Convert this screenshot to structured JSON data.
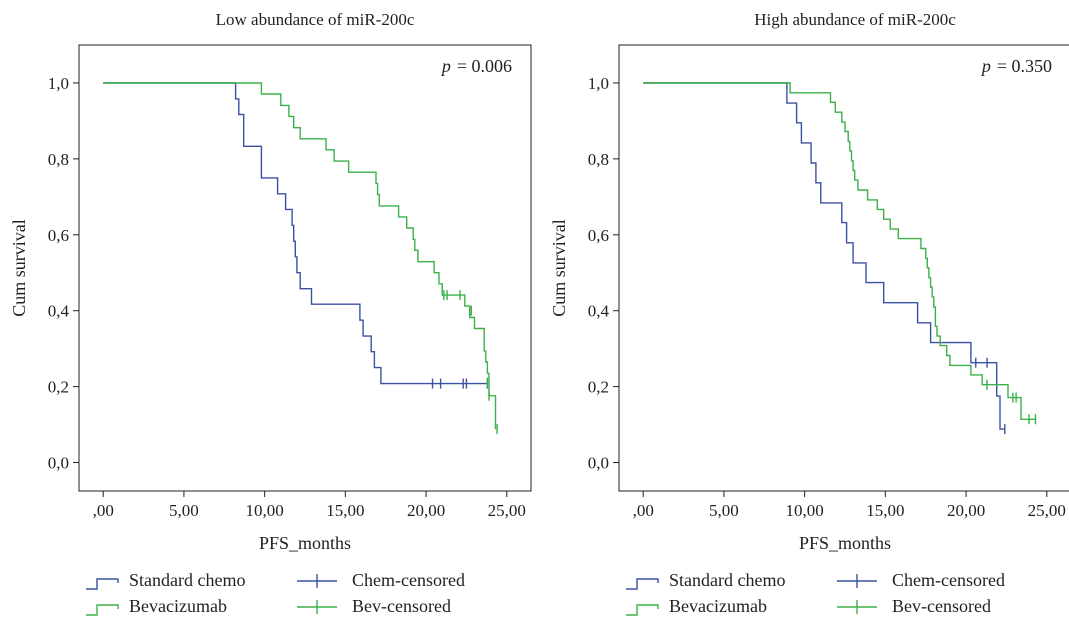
{
  "chart_data": [
    {
      "type": "line",
      "title": "Low abundance of miR-200c",
      "p_label": "p",
      "p_value": "= 0.006",
      "xlabel": "PFS_months",
      "ylabel": "Cum survival",
      "xlim": [
        -1.5,
        26.5
      ],
      "ylim": [
        -0.075,
        1.1
      ],
      "xticks": [
        0,
        5,
        10,
        15,
        20,
        25
      ],
      "xtick_labels": [
        ",00",
        "5,00",
        "10,00",
        "15,00",
        "20,00",
        "25,00"
      ],
      "yticks": [
        0,
        0.2,
        0.4,
        0.6,
        0.8,
        1.0
      ],
      "ytick_labels": [
        "0,0",
        "0,2",
        "0,4",
        "0,6",
        "0,8",
        "1,0"
      ],
      "grid": false,
      "series": [
        {
          "name": "Standard chemo",
          "color": "#3a52a3",
          "steps": [
            [
              0,
              1.0
            ],
            [
              8.2,
              1.0
            ],
            [
              8.2,
              0.958
            ],
            [
              8.4,
              0.917
            ],
            [
              8.7,
              0.833
            ],
            [
              9.8,
              0.75
            ],
            [
              10.8,
              0.708
            ],
            [
              11.3,
              0.667
            ],
            [
              11.7,
              0.625
            ],
            [
              11.8,
              0.583
            ],
            [
              11.9,
              0.542
            ],
            [
              12.0,
              0.5
            ],
            [
              12.2,
              0.458
            ],
            [
              12.9,
              0.417
            ],
            [
              15.9,
              0.375
            ],
            [
              16.1,
              0.333
            ],
            [
              16.6,
              0.292
            ],
            [
              16.8,
              0.25
            ],
            [
              17.2,
              0.208
            ],
            [
              23.8,
              0.208
            ]
          ],
          "censored": [
            [
              20.4,
              0.208
            ],
            [
              20.9,
              0.208
            ],
            [
              22.3,
              0.208
            ],
            [
              22.5,
              0.208
            ],
            [
              23.8,
              0.208
            ]
          ]
        },
        {
          "name": "Bevacizumab",
          "color": "#3db049",
          "steps": [
            [
              0,
              1.0
            ],
            [
              9.8,
              1.0
            ],
            [
              9.8,
              0.971
            ],
            [
              11.0,
              0.941
            ],
            [
              11.5,
              0.912
            ],
            [
              11.8,
              0.882
            ],
            [
              12.2,
              0.853
            ],
            [
              13.8,
              0.824
            ],
            [
              14.3,
              0.794
            ],
            [
              15.2,
              0.765
            ],
            [
              16.9,
              0.735
            ],
            [
              17.0,
              0.706
            ],
            [
              17.1,
              0.676
            ],
            [
              18.3,
              0.647
            ],
            [
              18.8,
              0.618
            ],
            [
              19.2,
              0.588
            ],
            [
              19.3,
              0.559
            ],
            [
              19.5,
              0.529
            ],
            [
              20.5,
              0.5
            ],
            [
              20.8,
              0.471
            ],
            [
              21.0,
              0.441
            ],
            [
              22.4,
              0.412
            ],
            [
              22.7,
              0.382
            ],
            [
              23.0,
              0.353
            ],
            [
              23.6,
              0.294
            ],
            [
              23.7,
              0.265
            ],
            [
              23.8,
              0.235
            ],
            [
              23.9,
              0.176
            ],
            [
              24.3,
              0.088
            ]
          ],
          "censored": [
            [
              21.1,
              0.441
            ],
            [
              21.3,
              0.441
            ],
            [
              22.1,
              0.441
            ],
            [
              22.8,
              0.4
            ],
            [
              23.8,
              0.211
            ],
            [
              23.9,
              0.176
            ],
            [
              24.4,
              0.088
            ]
          ]
        }
      ]
    },
    {
      "type": "line",
      "title": "High abundance of miR-200c",
      "p_label": "p",
      "p_value": "= 0.350",
      "xlabel": "PFS_months",
      "ylabel": "Cum survival",
      "xlim": [
        -1.5,
        26.5
      ],
      "ylim": [
        -0.075,
        1.1
      ],
      "xticks": [
        0,
        5,
        10,
        15,
        20,
        25
      ],
      "xtick_labels": [
        ",00",
        "5,00",
        "10,00",
        "15,00",
        "20,00",
        "25,00"
      ],
      "yticks": [
        0,
        0.2,
        0.4,
        0.6,
        0.8,
        1.0
      ],
      "ytick_labels": [
        "0,0",
        "0,2",
        "0,4",
        "0,6",
        "0,8",
        "1,0"
      ],
      "grid": false,
      "series": [
        {
          "name": "Standard chemo",
          "color": "#3a52a3",
          "steps": [
            [
              0,
              1.0
            ],
            [
              8.9,
              1.0
            ],
            [
              8.9,
              0.947
            ],
            [
              9.5,
              0.895
            ],
            [
              9.8,
              0.842
            ],
            [
              10.4,
              0.789
            ],
            [
              10.7,
              0.737
            ],
            [
              11.0,
              0.684
            ],
            [
              12.3,
              0.632
            ],
            [
              12.6,
              0.579
            ],
            [
              13.0,
              0.526
            ],
            [
              13.8,
              0.474
            ],
            [
              14.9,
              0.421
            ],
            [
              17.0,
              0.368
            ],
            [
              17.8,
              0.316
            ],
            [
              20.3,
              0.263
            ],
            [
              21.9,
              0.175
            ],
            [
              22.1,
              0.088
            ],
            [
              22.4,
              0.088
            ]
          ],
          "censored": [
            [
              20.6,
              0.263
            ],
            [
              21.3,
              0.263
            ],
            [
              22.4,
              0.088
            ]
          ]
        },
        {
          "name": "Bevacizumab",
          "color": "#3db049",
          "steps": [
            [
              0,
              1.0
            ],
            [
              9.1,
              1.0
            ],
            [
              9.1,
              0.974
            ],
            [
              11.6,
              0.949
            ],
            [
              11.9,
              0.923
            ],
            [
              12.3,
              0.897
            ],
            [
              12.5,
              0.872
            ],
            [
              12.7,
              0.846
            ],
            [
              12.8,
              0.821
            ],
            [
              12.9,
              0.795
            ],
            [
              13.0,
              0.769
            ],
            [
              13.1,
              0.744
            ],
            [
              13.3,
              0.718
            ],
            [
              13.9,
              0.692
            ],
            [
              14.5,
              0.667
            ],
            [
              14.9,
              0.641
            ],
            [
              15.3,
              0.615
            ],
            [
              15.8,
              0.59
            ],
            [
              17.2,
              0.564
            ],
            [
              17.5,
              0.538
            ],
            [
              17.6,
              0.513
            ],
            [
              17.7,
              0.487
            ],
            [
              17.8,
              0.462
            ],
            [
              17.9,
              0.436
            ],
            [
              18.0,
              0.41
            ],
            [
              18.1,
              0.385
            ],
            [
              18.1,
              0.359
            ],
            [
              18.2,
              0.333
            ],
            [
              18.4,
              0.308
            ],
            [
              18.8,
              0.282
            ],
            [
              19.0,
              0.256
            ],
            [
              20.3,
              0.231
            ],
            [
              21.0,
              0.205
            ],
            [
              22.6,
              0.171
            ],
            [
              23.4,
              0.114
            ],
            [
              24.3,
              0.114
            ]
          ],
          "censored": [
            [
              21.3,
              0.205
            ],
            [
              22.9,
              0.171
            ],
            [
              23.1,
              0.171
            ],
            [
              23.9,
              0.114
            ],
            [
              24.3,
              0.114
            ]
          ]
        }
      ],
      "legend_placement": "bottom"
    }
  ],
  "legend": {
    "standard_chemo": "Standard chemo",
    "bevacizumab": "Bevacizumab",
    "chem_censored": "Chem-censored",
    "bev_censored": "Bev-censored"
  }
}
